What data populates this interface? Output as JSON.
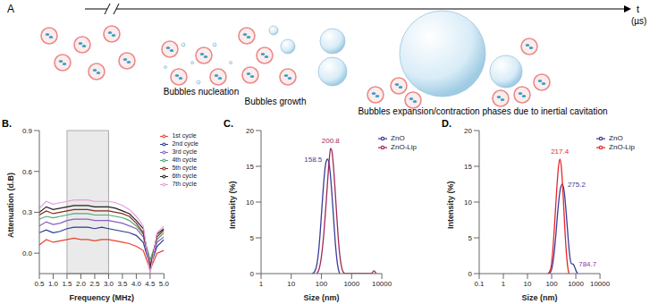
{
  "panel_A": {
    "label": "A",
    "time_label": "t",
    "time_unit": "(µs)",
    "stages": [
      "Bubbles nucleation",
      "Bubbles growth",
      "Bubbles expansion/contraction phases due to inertial cavitation"
    ]
  },
  "chart_data": [
    {
      "type": "line",
      "panel": "B.",
      "x_label": "Frequency (MHz)",
      "y_label": "Attenuation (d.B)",
      "xlim": [
        0.5,
        5.0
      ],
      "xticks": [
        0.5,
        {
          "value": 1,
          "label": "1.0"
        },
        1.5,
        {
          "value": 2,
          "label": "2.0"
        },
        2.5,
        {
          "value": 3,
          "label": "3.0"
        },
        3.5,
        {
          "value": 4,
          "label": "4.0"
        },
        4.5,
        {
          "value": 5,
          "label": "5.0"
        }
      ],
      "ylim": [
        -0.15,
        0.9
      ],
      "yticks": [
        {
          "value": 0,
          "label": "0.0"
        },
        0.3,
        0.6,
        0.9
      ],
      "grid": false,
      "legend": "upper right",
      "shaded_region": [
        1.5,
        3.0
      ],
      "x": [
        0.5,
        0.75,
        1.0,
        1.25,
        1.5,
        1.75,
        2.0,
        2.25,
        2.5,
        2.75,
        3.0,
        3.25,
        3.5,
        3.75,
        4.0,
        4.25,
        4.5,
        4.75,
        5.0
      ],
      "series": [
        {
          "name": "1st cycle",
          "color": "#e8412c",
          "values": [
            0.06,
            0.1,
            0.08,
            0.09,
            0.1,
            0.11,
            0.1,
            0.1,
            0.09,
            0.1,
            0.1,
            0.09,
            0.08,
            0.07,
            0.05,
            0.02,
            -0.12,
            0.0,
            0.02
          ]
        },
        {
          "name": "2nd cycle",
          "color": "#2b3a8c",
          "values": [
            0.15,
            0.17,
            0.15,
            0.16,
            0.18,
            0.19,
            0.19,
            0.19,
            0.18,
            0.19,
            0.18,
            0.17,
            0.16,
            0.15,
            0.13,
            0.08,
            -0.1,
            0.05,
            0.1
          ]
        },
        {
          "name": "3rd cycle",
          "color": "#8b5fbf",
          "values": [
            0.2,
            0.23,
            0.21,
            0.22,
            0.24,
            0.25,
            0.25,
            0.25,
            0.24,
            0.24,
            0.24,
            0.23,
            0.22,
            0.2,
            0.18,
            0.12,
            -0.08,
            0.08,
            0.12
          ]
        },
        {
          "name": "4th cycle",
          "color": "#4fa87a",
          "values": [
            0.25,
            0.27,
            0.26,
            0.27,
            0.28,
            0.29,
            0.29,
            0.29,
            0.28,
            0.28,
            0.28,
            0.27,
            0.26,
            0.24,
            0.2,
            0.14,
            -0.05,
            0.1,
            0.15
          ]
        },
        {
          "name": "5th cycle",
          "color": "#8b2a1a",
          "values": [
            0.28,
            0.31,
            0.29,
            0.3,
            0.31,
            0.32,
            0.32,
            0.32,
            0.31,
            0.31,
            0.31,
            0.3,
            0.29,
            0.27,
            0.22,
            0.15,
            -0.1,
            0.12,
            0.17
          ]
        },
        {
          "name": "6th cycle",
          "color": "#222222",
          "values": [
            0.3,
            0.34,
            0.32,
            0.33,
            0.34,
            0.35,
            0.35,
            0.35,
            0.34,
            0.34,
            0.34,
            0.33,
            0.31,
            0.29,
            0.24,
            0.18,
            -0.13,
            0.14,
            0.18
          ]
        },
        {
          "name": "7th cycle",
          "color": "#e89be0",
          "values": [
            0.33,
            0.38,
            0.36,
            0.37,
            0.38,
            0.39,
            0.39,
            0.39,
            0.38,
            0.38,
            0.38,
            0.37,
            0.35,
            0.32,
            0.27,
            0.2,
            -0.15,
            0.15,
            0.2
          ]
        }
      ]
    },
    {
      "type": "line",
      "panel": "C.",
      "x_label": "Size (nm)",
      "y_label": "Intensity (%)",
      "log": "x",
      "xlim": [
        1,
        10000
      ],
      "xticks": [
        1,
        10,
        100,
        1000,
        10000
      ],
      "ylim": [
        0,
        20
      ],
      "yticks": [
        0,
        5,
        10,
        15,
        20
      ],
      "grid": false,
      "legend": "upper right",
      "series": [
        {
          "name": "ZnO",
          "color": "#3b3b9e",
          "x": [
            50,
            60,
            70,
            80,
            90,
            100,
            110,
            120,
            130,
            140,
            158.5,
            180,
            200,
            220,
            250,
            280,
            320,
            360,
            400
          ],
          "values": [
            0,
            0.3,
            1.2,
            3,
            5.5,
            8.3,
            10.8,
            12.9,
            14.5,
            15.5,
            16.0,
            15.3,
            13.6,
            11.4,
            8.0,
            5.0,
            2.2,
            0.7,
            0
          ]
        },
        {
          "name": "ZnO-Lip",
          "color": "#a0285a",
          "x": [
            70,
            80,
            90,
            100,
            120,
            140,
            160,
            180,
            200.8,
            220,
            250,
            280,
            320,
            360,
            400,
            450,
            500,
            560,
            620,
            4500,
            5500,
            6500
          ],
          "values": [
            0,
            0.4,
            1.2,
            2.4,
            5.6,
            9.3,
            12.9,
            15.8,
            17.5,
            17.2,
            15.0,
            12.0,
            8.2,
            5.0,
            2.8,
            1.2,
            0.4,
            0.1,
            0,
            0,
            0.4,
            0
          ]
        }
      ],
      "annotations": [
        {
          "text": "158.5",
          "x": 158.5,
          "y": 16.0,
          "color": "#3b3b9e"
        },
        {
          "text": "200.8",
          "x": 200.8,
          "y": 17.5,
          "color": "#a0285a"
        }
      ]
    },
    {
      "type": "line",
      "panel": "D.",
      "x_label": "Size (nm)",
      "y_label": "Intensity (%)",
      "log": "x",
      "xlim": [
        0.1,
        10000
      ],
      "xticks": [
        0.1,
        1,
        10,
        100,
        1000,
        10000
      ],
      "ylim": [
        0,
        20
      ],
      "yticks": [
        0,
        5,
        10,
        15,
        20
      ],
      "grid": false,
      "legend": "upper right",
      "series": [
        {
          "name": "ZnO",
          "color": "#3b3b9e",
          "x": [
            80,
            100,
            120,
            150,
            180,
            220,
            275.2,
            330,
            400,
            480,
            560,
            650,
            784.7,
            900,
            1050,
            1200
          ],
          "values": [
            0,
            0.6,
            2.2,
            5.5,
            8.8,
            11.5,
            12.5,
            11.5,
            8.5,
            5.0,
            2.5,
            1.4,
            1.3,
            0.9,
            0.3,
            0
          ]
        },
        {
          "name": "ZnO-Lip",
          "color": "#e8262a",
          "x": [
            70,
            90,
            110,
            130,
            160,
            190,
            217.4,
            250,
            290,
            340,
            400,
            460,
            520
          ],
          "values": [
            0,
            0.6,
            3,
            6.5,
            11.5,
            14.8,
            16.0,
            15.0,
            11.8,
            7.2,
            3.2,
            1.0,
            0
          ]
        }
      ],
      "annotations": [
        {
          "text": "217.4",
          "x": 217.4,
          "y": 16.0,
          "color": "#e8262a"
        },
        {
          "text": "275.2",
          "x": 275.2,
          "y": 12.5,
          "color": "#3b3b9e"
        },
        {
          "text": "784.7",
          "x": 784.7,
          "y": 1.3,
          "color": "#8a3aa0"
        }
      ]
    }
  ]
}
